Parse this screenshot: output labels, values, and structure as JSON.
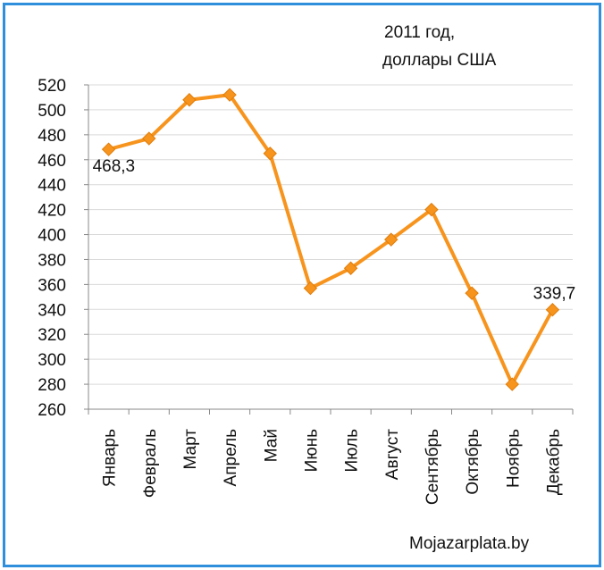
{
  "chart_data": {
    "type": "line",
    "title_line1": "2011 год,",
    "title_line2": "доллары США",
    "watermark": "Mojazarplata.by",
    "categories": [
      "Январь",
      "Февраль",
      "Март",
      "Апрель",
      "Май",
      "Июнь",
      "Июль",
      "Август",
      "Сентябрь",
      "Октябрь",
      "Ноябрь",
      "Декабрь"
    ],
    "series": [
      {
        "name": "2011 год, доллары США",
        "values": [
          468.3,
          477,
          508,
          512,
          465,
          357,
          373,
          396,
          420,
          353,
          280,
          339.7
        ]
      }
    ],
    "data_labels": [
      {
        "index": 0,
        "text": "468,3"
      },
      {
        "index": 11,
        "text": "339,7"
      }
    ],
    "yticks": [
      "260",
      "280",
      "300",
      "320",
      "340",
      "360",
      "380",
      "400",
      "420",
      "440",
      "460",
      "480",
      "500",
      "520"
    ],
    "ylim": [
      260,
      520
    ],
    "grid": true,
    "line_color": "#f7941d",
    "marker_color": "#f7941d",
    "frame_color": "#2f8fdc"
  }
}
